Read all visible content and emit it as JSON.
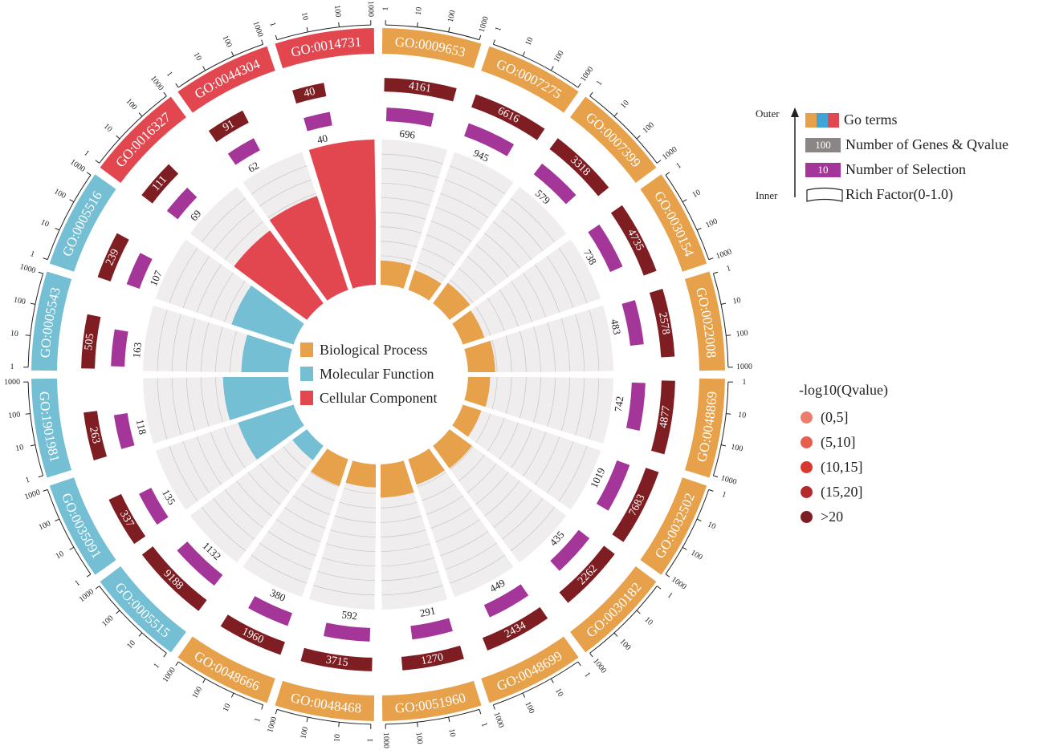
{
  "chart_data": {
    "type": "circos-go-enrichment",
    "terms": [
      {
        "id": "GO:0009653",
        "category": "Biological Process",
        "genes": 4161,
        "selection": 696,
        "rich": 0.167
      },
      {
        "id": "GO:0007275",
        "category": "Biological Process",
        "genes": 6616,
        "selection": 945,
        "rich": 0.143
      },
      {
        "id": "GO:0007399",
        "category": "Biological Process",
        "genes": 3318,
        "selection": 579,
        "rich": 0.175
      },
      {
        "id": "GO:0030154",
        "category": "Biological Process",
        "genes": 4735,
        "selection": 738,
        "rich": 0.156
      },
      {
        "id": "GO:0022008",
        "category": "Biological Process",
        "genes": 2578,
        "selection": 483,
        "rich": 0.187
      },
      {
        "id": "GO:0048869",
        "category": "Biological Process",
        "genes": 4877,
        "selection": 742,
        "rich": 0.152
      },
      {
        "id": "GO:0032502",
        "category": "Biological Process",
        "genes": 7683,
        "selection": 1019,
        "rich": 0.133
      },
      {
        "id": "GO:0030182",
        "category": "Biological Process",
        "genes": 2262,
        "selection": 435,
        "rich": 0.192
      },
      {
        "id": "GO:0048699",
        "category": "Biological Process",
        "genes": 2434,
        "selection": 449,
        "rich": 0.184
      },
      {
        "id": "GO:0051960",
        "category": "Biological Process",
        "genes": 1270,
        "selection": 291,
        "rich": 0.229
      },
      {
        "id": "GO:0048468",
        "category": "Biological Process",
        "genes": 3715,
        "selection": 592,
        "rich": 0.159
      },
      {
        "id": "GO:0048666",
        "category": "Biological Process",
        "genes": 1960,
        "selection": 380,
        "rich": 0.194
      },
      {
        "id": "GO:0005515",
        "category": "Molecular Function",
        "genes": 9188,
        "selection": 1132,
        "rich": 0.123
      },
      {
        "id": "GO:0035091",
        "category": "Molecular Function",
        "genes": 337,
        "selection": 135,
        "rich": 0.4
      },
      {
        "id": "GO:1901981",
        "category": "Molecular Function",
        "genes": 263,
        "selection": 118,
        "rich": 0.449
      },
      {
        "id": "GO:0005543",
        "category": "Molecular Function",
        "genes": 505,
        "selection": 163,
        "rich": 0.323
      },
      {
        "id": "GO:0005516",
        "category": "Molecular Function",
        "genes": 239,
        "selection": 107,
        "rich": 0.448
      },
      {
        "id": "GO:0016327",
        "category": "Cellular Component",
        "genes": 111,
        "selection": 69,
        "rich": 0.622
      },
      {
        "id": "GO:0044304",
        "category": "Cellular Component",
        "genes": 91,
        "selection": 62,
        "rich": 0.681
      },
      {
        "id": "GO:0014731",
        "category": "Cellular Component",
        "genes": 40,
        "selection": 40,
        "rich": 1.0
      }
    ],
    "axis_ticks": [
      "1",
      "10",
      "100",
      "1000"
    ],
    "rich_range": [
      0,
      1.0
    ],
    "categories": [
      {
        "name": "Biological Process",
        "color": "#E6A14A"
      },
      {
        "name": "Molecular Function",
        "color": "#74BFD3"
      },
      {
        "name": "Cellular Component",
        "color": "#E2474F"
      }
    ],
    "colors": {
      "genes": "#7E1E22",
      "selection": "#A4369A",
      "track_bg": "#EFEDED",
      "grid": "#C8C5C5"
    }
  },
  "legend": {
    "outer_label": "Outer",
    "inner_label": "Inner",
    "go_terms": "Go terms",
    "genes_box": "100",
    "genes_label": "Number of Genes & Qvalue",
    "selection_box": "10",
    "selection_label": "Number of Selection",
    "rich_label": "Rich Factor(0-1.0)"
  },
  "qvalue_legend": {
    "title": "-log10(Qvalue)",
    "items": [
      {
        "label": "(0,5]",
        "color": "#EE7C6C"
      },
      {
        "label": "(5,10]",
        "color": "#E85E4E"
      },
      {
        "label": "(10,15]",
        "color": "#D8382F"
      },
      {
        "label": "(15,20]",
        "color": "#B42A2A"
      },
      {
        "label": ">20",
        "color": "#7E1E22"
      }
    ]
  }
}
